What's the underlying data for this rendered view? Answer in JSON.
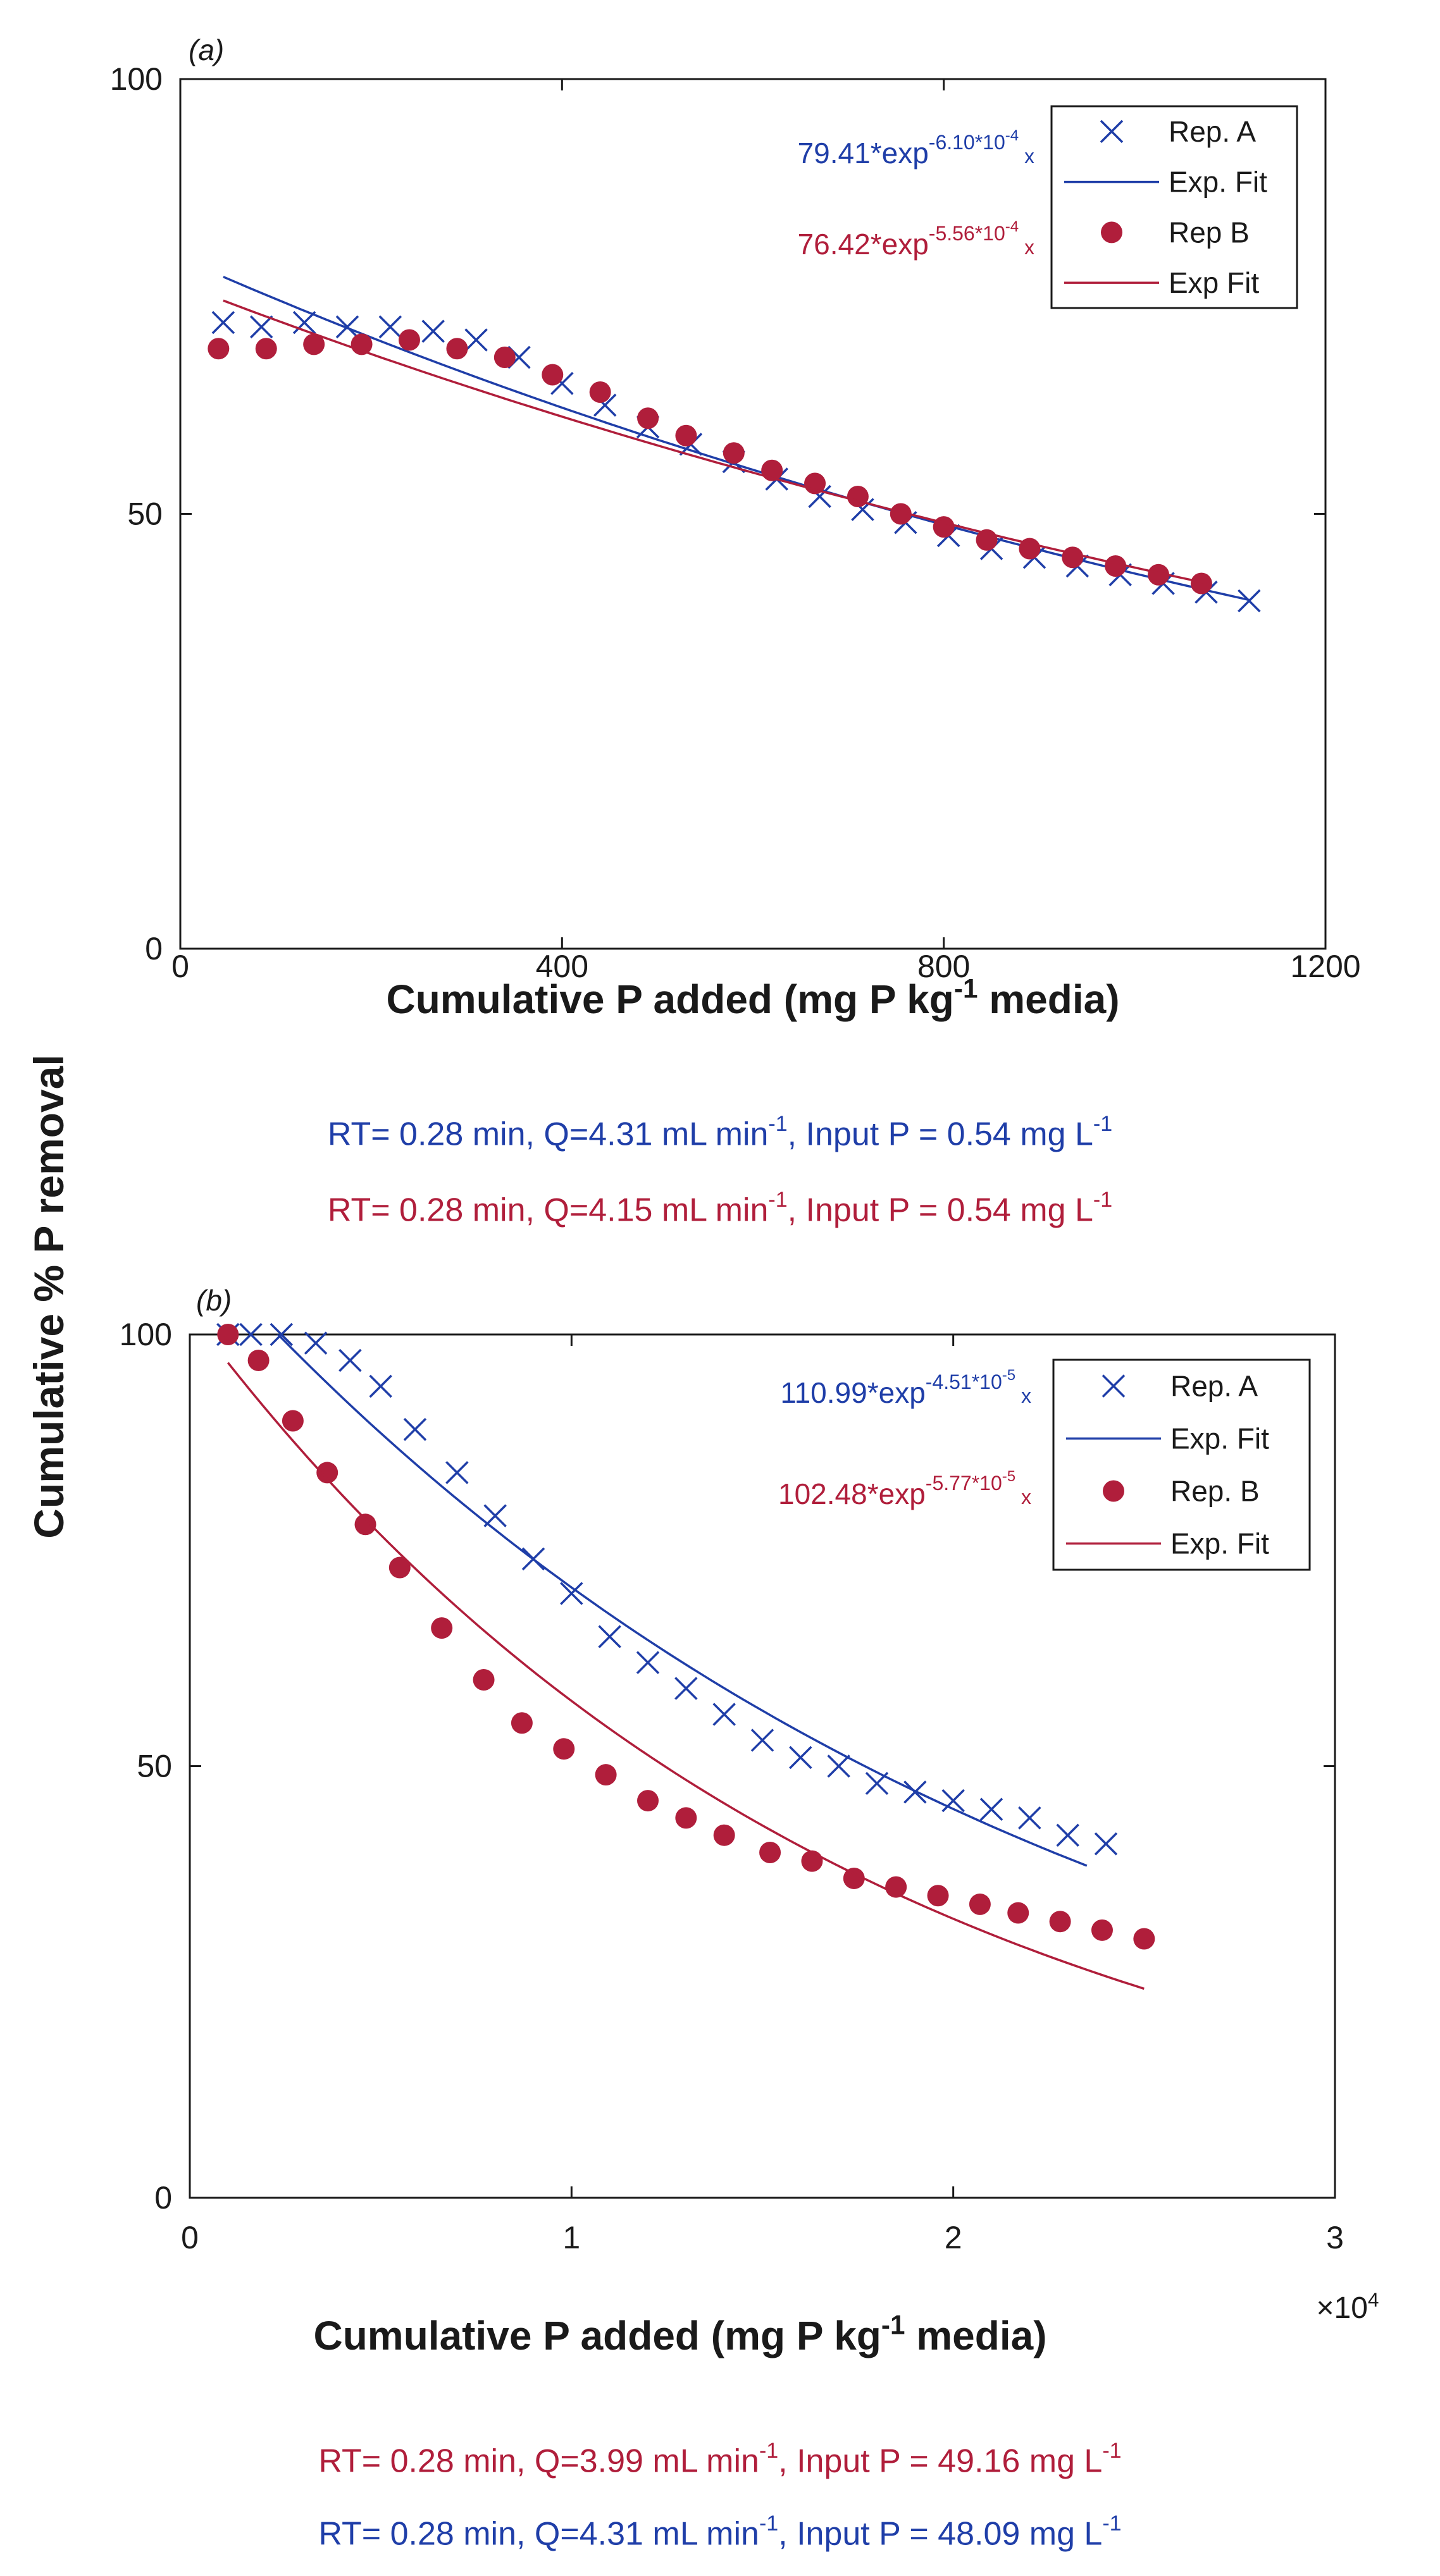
{
  "figure": {
    "ylabel": "Cumulative % P removal"
  },
  "colors": {
    "rep_a": "#1f3ea8",
    "rep_b": "#b01e3b",
    "axis": "#1a1a1a"
  },
  "chart_data": [
    {
      "type": "scatter",
      "panel": "(a)",
      "xlabel_parts": [
        "Cumulative P added (mg P kg",
        "-1",
        " media)"
      ],
      "xlim": [
        0,
        1200
      ],
      "ylim": [
        0,
        100
      ],
      "xticks": [
        0,
        400,
        800,
        1200
      ],
      "yticks": [
        0,
        50,
        100
      ],
      "legend_position": "top-right",
      "annotations": [
        {
          "series": "A",
          "base": "79.41*exp",
          "exponent": "-6.10*10",
          "power": "-4",
          "suffix": "x"
        },
        {
          "series": "B",
          "base": "76.42*exp",
          "exponent": "-5.56*10",
          "power": "-4",
          "suffix": "x"
        }
      ],
      "series": [
        {
          "name": "Rep. A",
          "marker": "x",
          "x": [
            45,
            85,
            130,
            175,
            220,
            265,
            310,
            355,
            400,
            445,
            490,
            535,
            580,
            625,
            670,
            715,
            760,
            805,
            850,
            895,
            940,
            985,
            1030,
            1075,
            1120
          ],
          "y": [
            72,
            71.5,
            72,
            71.5,
            71.5,
            71,
            70,
            68,
            65,
            62.5,
            60,
            58,
            56,
            54,
            52,
            50.5,
            49,
            47.5,
            46,
            45,
            44,
            43,
            42,
            41,
            40
          ]
        },
        {
          "name": "Exp. Fit",
          "line": true,
          "a": 79.41,
          "k": 0.00061,
          "range": [
            45,
            1120
          ]
        },
        {
          "name": "Rep B",
          "marker": "dot",
          "x": [
            40,
            90,
            140,
            190,
            240,
            290,
            340,
            390,
            440,
            490,
            530,
            580,
            620,
            665,
            710,
            755,
            800,
            845,
            890,
            935,
            980,
            1025,
            1070
          ],
          "y": [
            69,
            69,
            69.5,
            69.5,
            70,
            69,
            68,
            66,
            64,
            61,
            59,
            57,
            55,
            53.5,
            52,
            50,
            48.5,
            47,
            46,
            45,
            44,
            43,
            42
          ]
        },
        {
          "name": "Exp Fit",
          "line": true,
          "a": 76.42,
          "k": 0.000556,
          "range": [
            45,
            1075
          ]
        }
      ],
      "captions": [
        {
          "series": "A",
          "parts": [
            "RT= 0.28 min, Q=4.31 mL min",
            "-1",
            ", Input P = 0.54 mg L",
            "-1"
          ]
        },
        {
          "series": "B",
          "parts": [
            "RT= 0.28 min, Q=4.15 mL min",
            "-1",
            ", Input P = 0.54 mg L",
            "-1"
          ]
        }
      ]
    },
    {
      "type": "scatter",
      "panel": "(b)",
      "xlabel_parts": [
        "Cumulative P added (mg P kg",
        "-1",
        " media)"
      ],
      "xlim": [
        0,
        30000
      ],
      "ylim": [
        0,
        100
      ],
      "xticks": [
        0,
        10000,
        20000,
        30000
      ],
      "xtick_labels": [
        "0",
        "1",
        "2",
        "3"
      ],
      "yticks": [
        0,
        50,
        100
      ],
      "xmultiplier": {
        "base": "×10",
        "power": "4"
      },
      "legend_position": "top-right",
      "annotations": [
        {
          "series": "A",
          "base": "110.99*exp",
          "exponent": "-4.51*10",
          "power": "-5",
          "suffix": "x"
        },
        {
          "series": "B",
          "base": "102.48*exp",
          "exponent": "-5.77*10",
          "power": "-5",
          "suffix": "x"
        }
      ],
      "series": [
        {
          "name": "Rep. A",
          "marker": "x",
          "x": [
            1000,
            1600,
            2400,
            3300,
            4200,
            5000,
            5900,
            7000,
            8000,
            9000,
            10000,
            11000,
            12000,
            13000,
            14000,
            15000,
            16000,
            17000,
            18000,
            19000,
            20000,
            21000,
            22000,
            23000,
            24000
          ],
          "y": [
            100,
            100,
            100,
            99,
            97,
            94,
            89,
            84,
            79,
            74,
            70,
            65,
            62,
            59,
            56,
            53,
            51,
            50,
            48,
            47,
            46,
            45,
            44,
            42,
            41
          ]
        },
        {
          "name": "Exp. Fit",
          "line": true,
          "a": 110.99,
          "k": 4.51e-05,
          "range": [
            1000,
            23500
          ]
        },
        {
          "name": "Rep. B",
          "marker": "dot",
          "x": [
            1000,
            1800,
            2700,
            3600,
            4600,
            5500,
            6600,
            7700,
            8700,
            9800,
            10900,
            12000,
            13000,
            14000,
            15200,
            16300,
            17400,
            18500,
            19600,
            20700,
            21700,
            22800,
            23900,
            25000
          ],
          "y": [
            100,
            97,
            90,
            84,
            78,
            73,
            66,
            60,
            55,
            52,
            49,
            46,
            44,
            42,
            40,
            39,
            37,
            36,
            35,
            34,
            33,
            32,
            31,
            30
          ]
        },
        {
          "name": "Exp. Fit",
          "line": true,
          "a": 102.48,
          "k": 5.77e-05,
          "range": [
            1000,
            25000
          ]
        }
      ],
      "captions": [
        {
          "series": "B",
          "parts": [
            "RT= 0.28 min, Q=3.99 mL min",
            "-1",
            ", Input P = 49.16 mg L",
            "-1"
          ]
        },
        {
          "series": "A",
          "parts": [
            "RT= 0.28 min, Q=4.31 mL min",
            "-1",
            ", Input P = 48.09 mg L",
            "-1"
          ]
        }
      ]
    }
  ]
}
